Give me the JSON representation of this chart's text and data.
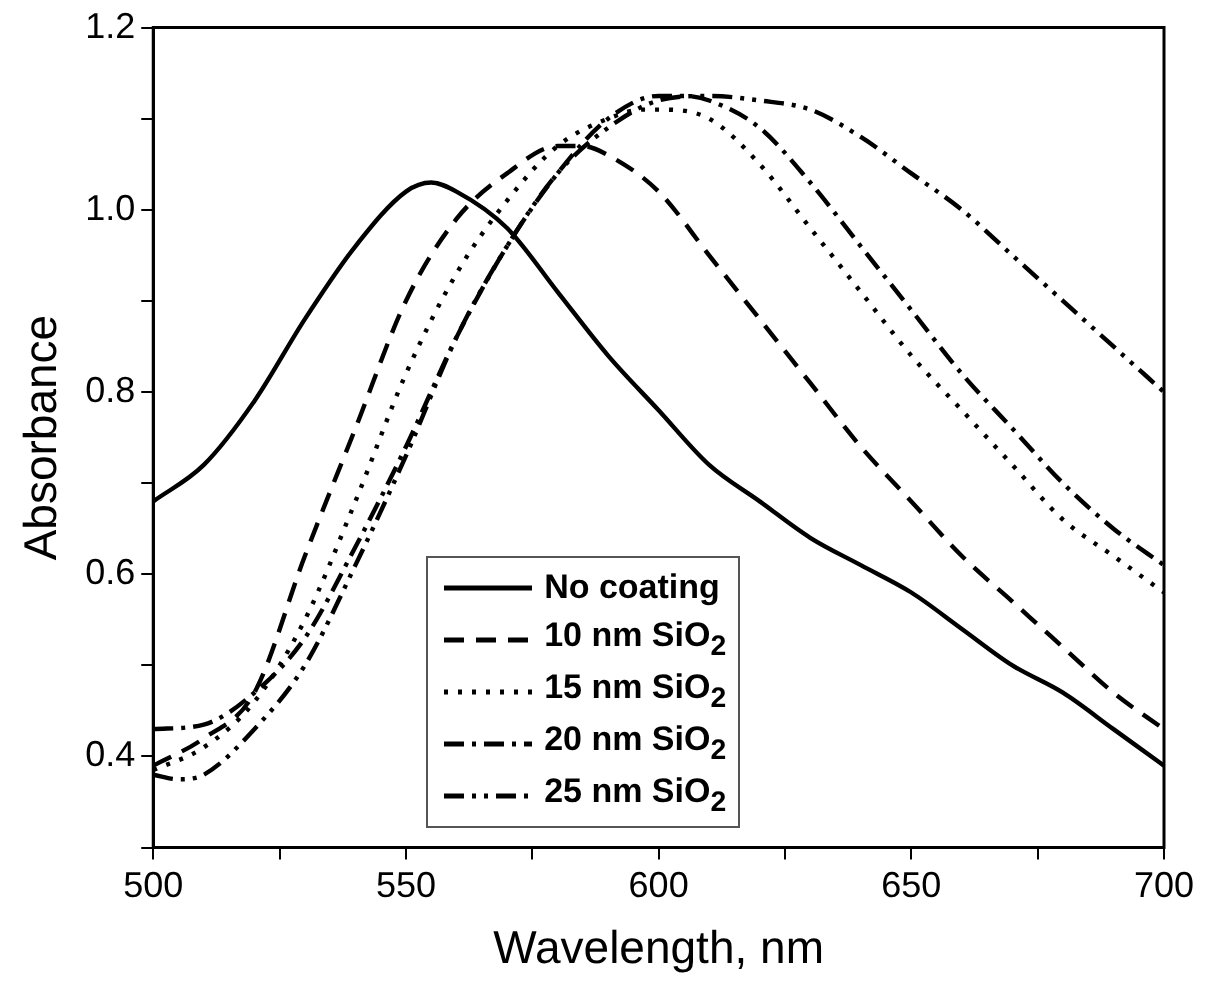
{
  "chart_data": {
    "type": "line",
    "xlabel": "Wavelength, nm",
    "ylabel": "Absorbance",
    "xlim": [
      500,
      700
    ],
    "xticks": [
      500,
      {
        "value": 525,
        "label": null
      },
      550,
      {
        "value": 575,
        "label": null
      },
      600,
      {
        "value": 625,
        "label": null
      },
      650,
      {
        "value": 675,
        "label": null
      },
      700
    ],
    "ylim": [
      0.3,
      1.2
    ],
    "yticks": [
      {
        "value": 0.3,
        "label": null
      },
      {
        "value": 0.4,
        "label": "0.4"
      },
      {
        "value": 0.5,
        "label": null
      },
      {
        "value": 0.6,
        "label": "0.6"
      },
      {
        "value": 0.7,
        "label": null
      },
      {
        "value": 0.8,
        "label": "0.8"
      },
      {
        "value": 0.9,
        "label": null
      },
      {
        "value": 1.0,
        "label": "1.0"
      },
      {
        "value": 1.1,
        "label": null
      },
      {
        "value": 1.2,
        "label": "1.2"
      }
    ],
    "grid": false,
    "legend": "bottom left",
    "marker": "none",
    "series": [
      {
        "name": "No coating",
        "color": "#000000",
        "line_style": "solid",
        "x": [
          500,
          510,
          520,
          530,
          540,
          550,
          555,
          560,
          570,
          580,
          590,
          600,
          610,
          620,
          630,
          640,
          650,
          660,
          670,
          680,
          690,
          700
        ],
        "values": [
          0.68,
          0.72,
          0.79,
          0.88,
          0.96,
          1.02,
          1.03,
          1.02,
          0.98,
          0.91,
          0.84,
          0.78,
          0.72,
          0.68,
          0.64,
          0.61,
          0.58,
          0.54,
          0.5,
          0.47,
          0.43,
          0.39
        ]
      },
      {
        "name": "10 nm SiO$_{2}$",
        "color": "#000000",
        "line_style": "dashed",
        "x": [
          500,
          510,
          520,
          530,
          540,
          550,
          560,
          570,
          580,
          585,
          590,
          600,
          610,
          620,
          630,
          640,
          650,
          660,
          670,
          680,
          690,
          700
        ],
        "values": [
          0.39,
          0.42,
          0.47,
          0.62,
          0.76,
          0.9,
          0.99,
          1.04,
          1.07,
          1.07,
          1.06,
          1.02,
          0.95,
          0.88,
          0.81,
          0.74,
          0.68,
          0.62,
          0.57,
          0.52,
          0.47,
          0.43
        ]
      },
      {
        "name": "15 nm SiO$_{2}$",
        "color": "#000000",
        "line_style": "dotted",
        "x": [
          500,
          510,
          520,
          530,
          540,
          550,
          560,
          570,
          580,
          590,
          597,
          600,
          610,
          620,
          630,
          640,
          650,
          660,
          670,
          680,
          690,
          700
        ],
        "values": [
          0.385,
          0.41,
          0.46,
          0.55,
          0.68,
          0.82,
          0.93,
          1.01,
          1.07,
          1.1,
          1.11,
          1.11,
          1.1,
          1.05,
          0.98,
          0.91,
          0.84,
          0.78,
          0.72,
          0.66,
          0.62,
          0.58
        ]
      },
      {
        "name": "20 nm SiO$_{2}$",
        "color": "#000000",
        "line_style": "dashdot",
        "x": [
          500,
          510,
          520,
          530,
          540,
          550,
          560,
          570,
          580,
          590,
          600,
          605,
          610,
          620,
          630,
          640,
          650,
          660,
          670,
          680,
          690,
          700
        ],
        "values": [
          0.43,
          0.435,
          0.47,
          0.53,
          0.63,
          0.74,
          0.86,
          0.96,
          1.04,
          1.1,
          1.125,
          1.125,
          1.12,
          1.09,
          1.03,
          0.96,
          0.89,
          0.82,
          0.76,
          0.7,
          0.65,
          0.61
        ]
      },
      {
        "name": "25 nm SiO$_{2}$",
        "color": "#000000",
        "line_style": "dashdotdot",
        "x": [
          500,
          505,
          510,
          520,
          530,
          540,
          550,
          560,
          570,
          580,
          590,
          600,
          610,
          620,
          630,
          640,
          650,
          660,
          670,
          680,
          690,
          700
        ],
        "values": [
          0.38,
          0.375,
          0.38,
          0.43,
          0.5,
          0.61,
          0.73,
          0.86,
          0.96,
          1.04,
          1.09,
          1.12,
          1.125,
          1.12,
          1.11,
          1.08,
          1.04,
          1.0,
          0.95,
          0.9,
          0.85,
          0.8
        ]
      }
    ]
  }
}
